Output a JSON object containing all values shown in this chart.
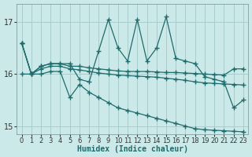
{
  "xlabel": "Humidex (Indice chaleur)",
  "xlim": [
    -0.5,
    23.5
  ],
  "ylim": [
    14.85,
    17.35
  ],
  "yticks": [
    15,
    16,
    17
  ],
  "xticks": [
    0,
    1,
    2,
    3,
    4,
    5,
    6,
    7,
    8,
    9,
    10,
    11,
    12,
    13,
    14,
    15,
    16,
    17,
    18,
    19,
    20,
    21,
    22,
    23
  ],
  "bg_color": "#cce9e9",
  "grid_color": "#a8cccc",
  "line_color": "#1e6b6b",
  "curve_spiky": [
    16.6,
    16.0,
    16.15,
    16.2,
    16.2,
    16.2,
    15.9,
    15.85,
    16.45,
    17.05,
    16.5,
    16.25,
    17.05,
    16.25,
    16.5,
    17.1,
    16.3,
    16.25,
    16.2,
    15.95,
    15.9,
    15.85,
    15.35,
    15.5
  ],
  "curve_upper": [
    16.6,
    16.0,
    16.15,
    16.2,
    16.2,
    16.15,
    16.15,
    16.12,
    16.1,
    16.08,
    16.06,
    16.05,
    16.05,
    16.05,
    16.04,
    16.03,
    16.03,
    16.02,
    16.01,
    16.0,
    15.99,
    15.98,
    16.1,
    16.1
  ],
  "curve_mid": [
    16.6,
    16.0,
    16.1,
    16.15,
    16.15,
    16.1,
    16.08,
    16.05,
    16.02,
    16.0,
    15.98,
    15.97,
    15.96,
    15.95,
    15.94,
    15.92,
    15.9,
    15.88,
    15.85,
    15.83,
    15.82,
    15.81,
    15.8,
    15.79
  ],
  "curve_lower": [
    16.0,
    16.0,
    16.0,
    16.05,
    16.05,
    15.55,
    15.8,
    15.65,
    15.55,
    15.45,
    15.35,
    15.3,
    15.25,
    15.2,
    15.15,
    15.1,
    15.05,
    15.0,
    14.95,
    14.93,
    14.92,
    14.91,
    14.9,
    14.89
  ]
}
